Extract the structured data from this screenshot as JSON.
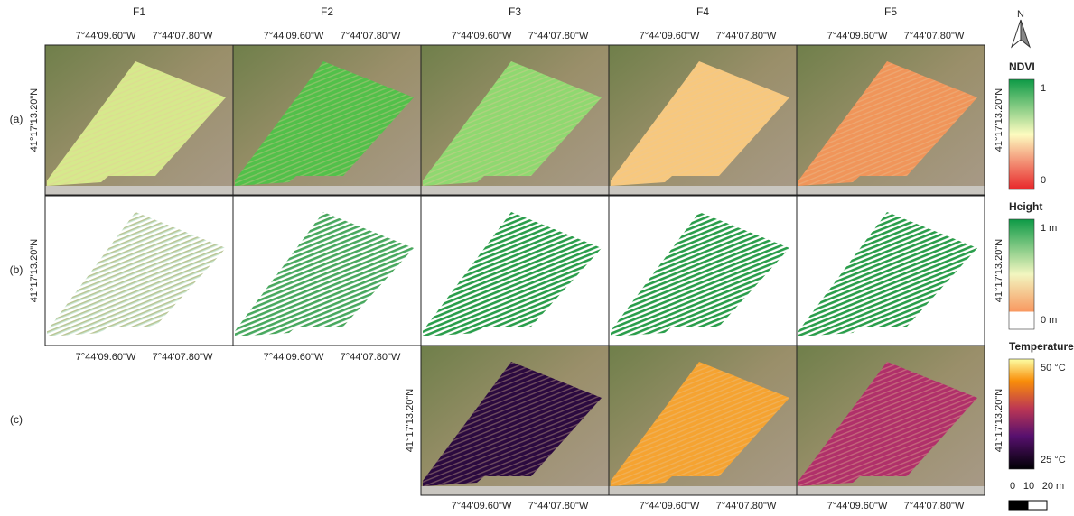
{
  "columns": [
    "F1",
    "F2",
    "F3",
    "F4",
    "F5"
  ],
  "rows": [
    "(a)",
    "(b)",
    "(c)"
  ],
  "axis_labels": {
    "lon": [
      "7°44'09.60\"W",
      "7°44'07.80\"W"
    ],
    "lat": "41°17'13.20\"N"
  },
  "legends": [
    {
      "title": "NDVI",
      "max": "1",
      "min": "0"
    },
    {
      "title": "Height",
      "max": "1 m",
      "min": "0 m"
    },
    {
      "title": "Temperature",
      "max": "50 °C",
      "min": "25 °C"
    }
  ],
  "scale_bar": [
    "0",
    "10",
    "20 m"
  ],
  "north": "N"
}
